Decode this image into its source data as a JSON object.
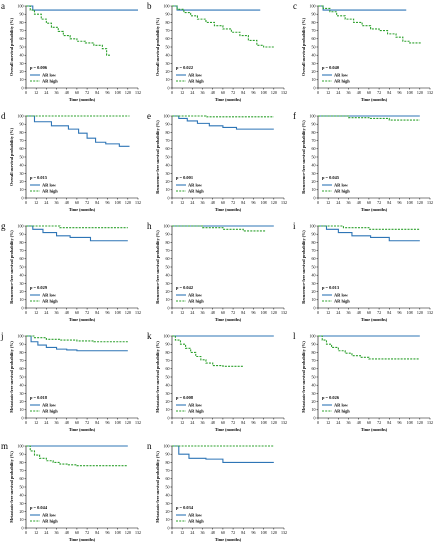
{
  "chart_data": [
    {
      "type": "line",
      "panel": "a",
      "ylabel": "Overall survival probability (%)",
      "xlabel": "Time (months)",
      "pvalue": "p = 0.006",
      "legend": [
        "AR low",
        "AR high"
      ],
      "colors": [
        "#2e75b6",
        "#2ca02c"
      ],
      "dashed": [
        false,
        true
      ],
      "xlim": [
        0,
        132
      ],
      "ylim": [
        0,
        100
      ],
      "series": [
        {
          "name": "AR low",
          "x": [
            0,
            8,
            132
          ],
          "y": [
            100,
            95,
            95
          ]
        },
        {
          "name": "AR high",
          "x": [
            0,
            5,
            10,
            18,
            24,
            30,
            38,
            44,
            52,
            60,
            70,
            80,
            90,
            95,
            100
          ],
          "y": [
            100,
            95,
            90,
            84,
            79,
            74,
            69,
            64,
            60,
            57,
            55,
            52,
            48,
            40,
            40
          ]
        }
      ]
    },
    {
      "type": "line",
      "panel": "b",
      "ylabel": "Overall survival probability (%)",
      "xlabel": "Time (months)",
      "pvalue": "p = 0.022",
      "legend": [
        "AR low",
        "AR high"
      ],
      "colors": [
        "#2e75b6",
        "#2ca02c"
      ],
      "dashed": [
        false,
        true
      ],
      "xlim": [
        0,
        132
      ],
      "ylim": [
        0,
        100
      ],
      "series": [
        {
          "name": "AR low",
          "x": [
            0,
            6,
            104
          ],
          "y": [
            100,
            95,
            95
          ]
        },
        {
          "name": "AR high",
          "x": [
            0,
            6,
            14,
            22,
            30,
            40,
            50,
            60,
            70,
            80,
            90,
            100,
            108,
            120
          ],
          "y": [
            100,
            96,
            92,
            88,
            84,
            80,
            76,
            72,
            68,
            64,
            58,
            52,
            50,
            50
          ]
        }
      ]
    },
    {
      "type": "line",
      "panel": "c",
      "ylabel": "Overall survival probability (%)",
      "xlabel": "Time (months)",
      "pvalue": "p = 0.040",
      "legend": [
        "AR low",
        "AR high"
      ],
      "colors": [
        "#2e75b6",
        "#2ca02c"
      ],
      "dashed": [
        false,
        true
      ],
      "xlim": [
        0,
        132
      ],
      "ylim": [
        0,
        100
      ],
      "series": [
        {
          "name": "AR low",
          "x": [
            0,
            6,
            104
          ],
          "y": [
            100,
            95,
            95
          ]
        },
        {
          "name": "AR high",
          "x": [
            0,
            6,
            14,
            22,
            32,
            42,
            52,
            62,
            72,
            82,
            92,
            100,
            108,
            122
          ],
          "y": [
            100,
            97,
            93,
            88,
            84,
            80,
            76,
            72,
            70,
            66,
            62,
            57,
            55,
            55
          ]
        }
      ]
    },
    {
      "type": "line",
      "panel": "d",
      "ylabel": "Overall survival probability (%)",
      "xlabel": "Time (months)",
      "pvalue": "p = 0.015",
      "legend": [
        "AR low",
        "AR high"
      ],
      "colors": [
        "#2e75b6",
        "#2ca02c"
      ],
      "dashed": [
        false,
        true
      ],
      "xlim": [
        0,
        132
      ],
      "ylim": [
        0,
        100
      ],
      "series": [
        {
          "name": "AR low",
          "x": [
            0,
            10,
            30,
            50,
            62,
            72,
            82,
            94,
            110,
            122
          ],
          "y": [
            100,
            93,
            88,
            84,
            79,
            73,
            68,
            66,
            63,
            63
          ]
        },
        {
          "name": "AR high",
          "x": [
            0,
            122
          ],
          "y": [
            100,
            100
          ]
        }
      ]
    },
    {
      "type": "line",
      "panel": "e",
      "ylabel": "Recurrence-free survival probability (%)",
      "xlabel": "Time (months)",
      "pvalue": "p = 0.001",
      "legend": [
        "AR low",
        "AR high"
      ],
      "colors": [
        "#2e75b6",
        "#2ca02c"
      ],
      "dashed": [
        false,
        true
      ],
      "xlim": [
        0,
        132
      ],
      "ylim": [
        0,
        100
      ],
      "series": [
        {
          "name": "AR low",
          "x": [
            0,
            8,
            18,
            30,
            44,
            60,
            76,
            120
          ],
          "y": [
            100,
            97,
            94,
            91,
            88,
            86,
            84,
            84
          ]
        },
        {
          "name": "AR high",
          "x": [
            0,
            40,
            120
          ],
          "y": [
            100,
            99,
            99
          ]
        }
      ]
    },
    {
      "type": "line",
      "panel": "f",
      "ylabel": "Recurrence-free survival probability (%)",
      "xlabel": "Time (months)",
      "pvalue": "p = 0.045",
      "legend": [
        "AR low",
        "AR high"
      ],
      "colors": [
        "#2e75b6",
        "#2ca02c"
      ],
      "dashed": [
        false,
        true
      ],
      "xlim": [
        0,
        132
      ],
      "ylim": [
        0,
        100
      ],
      "series": [
        {
          "name": "AR low",
          "x": [
            0,
            120
          ],
          "y": [
            100,
            100
          ]
        },
        {
          "name": "AR high",
          "x": [
            0,
            36,
            60,
            84,
            120
          ],
          "y": [
            100,
            98,
            97,
            95,
            95
          ]
        }
      ]
    },
    {
      "type": "line",
      "panel": "g",
      "ylabel": "Recurrence-free survival probability (%)",
      "xlabel": "Time (months)",
      "pvalue": "p = 0.029",
      "legend": [
        "AR low",
        "AR high"
      ],
      "colors": [
        "#2e75b6",
        "#2ca02c"
      ],
      "dashed": [
        false,
        true
      ],
      "xlim": [
        0,
        132
      ],
      "ylim": [
        0,
        100
      ],
      "series": [
        {
          "name": "AR low",
          "x": [
            0,
            8,
            20,
            36,
            52,
            76,
            120
          ],
          "y": [
            100,
            96,
            92,
            88,
            86,
            82,
            82
          ]
        },
        {
          "name": "AR high",
          "x": [
            0,
            40,
            120
          ],
          "y": [
            100,
            98,
            98
          ]
        }
      ]
    },
    {
      "type": "line",
      "panel": "h",
      "ylabel": "Recurrence-free survival probability (%)",
      "xlabel": "Time (months)",
      "pvalue": "p = 0.042",
      "legend": [
        "AR low",
        "AR high"
      ],
      "colors": [
        "#2e75b6",
        "#2ca02c"
      ],
      "dashed": [
        false,
        true
      ],
      "xlim": [
        0,
        132
      ],
      "ylim": [
        0,
        100
      ],
      "series": [
        {
          "name": "AR low",
          "x": [
            0,
            120
          ],
          "y": [
            100,
            100
          ]
        },
        {
          "name": "AR high",
          "x": [
            0,
            36,
            60,
            84,
            110
          ],
          "y": [
            100,
            98,
            96,
            94,
            94
          ]
        }
      ]
    },
    {
      "type": "line",
      "panel": "i",
      "ylabel": "Recurrence-free survival probability (%)",
      "xlabel": "Time (months)",
      "pvalue": "p = 0.013",
      "legend": [
        "AR low",
        "AR high"
      ],
      "colors": [
        "#2e75b6",
        "#2ca02c"
      ],
      "dashed": [
        false,
        true
      ],
      "xlim": [
        0,
        132
      ],
      "ylim": [
        0,
        100
      ],
      "series": [
        {
          "name": "AR low",
          "x": [
            0,
            10,
            24,
            40,
            62,
            84,
            120
          ],
          "y": [
            100,
            96,
            92,
            88,
            86,
            82,
            82
          ]
        },
        {
          "name": "AR high",
          "x": [
            0,
            30,
            60,
            120
          ],
          "y": [
            100,
            98,
            96,
            96
          ]
        }
      ]
    },
    {
      "type": "line",
      "panel": "j",
      "ylabel": "Metastasis-free survival probability (%)",
      "xlabel": "Time (months)",
      "pvalue": "p = 0.018",
      "legend": [
        "AR low",
        "AR high"
      ],
      "colors": [
        "#2e75b6",
        "#2ca02c"
      ],
      "dashed": [
        false,
        true
      ],
      "xlim": [
        0,
        132
      ],
      "ylim": [
        0,
        100
      ],
      "series": [
        {
          "name": "AR low",
          "x": [
            0,
            6,
            14,
            24,
            36,
            48,
            60,
            120
          ],
          "y": [
            100,
            93,
            89,
            86,
            84,
            83,
            82,
            82
          ]
        },
        {
          "name": "AR high",
          "x": [
            0,
            10,
            24,
            40,
            60,
            80,
            120
          ],
          "y": [
            100,
            98,
            96,
            95,
            94,
            93,
            93
          ]
        }
      ]
    },
    {
      "type": "line",
      "panel": "k",
      "ylabel": "Metastasis-free survival probability (%)",
      "xlabel": "Time (months)",
      "pvalue": "p = 0.008",
      "legend": [
        "AR low",
        "AR high"
      ],
      "colors": [
        "#2e75b6",
        "#2ca02c"
      ],
      "dashed": [
        false,
        true
      ],
      "xlim": [
        0,
        132
      ],
      "ylim": [
        0,
        100
      ],
      "series": [
        {
          "name": "AR low",
          "x": [
            0,
            120
          ],
          "y": [
            100,
            100
          ]
        },
        {
          "name": "AR high",
          "x": [
            0,
            4,
            10,
            16,
            22,
            28,
            34,
            40,
            48,
            60,
            84
          ],
          "y": [
            100,
            95,
            90,
            85,
            80,
            75,
            71,
            67,
            64,
            63,
            63
          ]
        }
      ]
    },
    {
      "type": "line",
      "panel": "l",
      "ylabel": "Metastasis-free survival probability (%)",
      "xlabel": "Time (months)",
      "pvalue": "p = 0.026",
      "legend": [
        "AR low",
        "AR high"
      ],
      "colors": [
        "#2e75b6",
        "#2ca02c"
      ],
      "dashed": [
        false,
        true
      ],
      "xlim": [
        0,
        132
      ],
      "ylim": [
        0,
        100
      ],
      "series": [
        {
          "name": "AR low",
          "x": [
            0,
            120
          ],
          "y": [
            100,
            100
          ]
        },
        {
          "name": "AR high",
          "x": [
            0,
            5,
            10,
            16,
            24,
            32,
            40,
            50,
            60,
            120
          ],
          "y": [
            100,
            95,
            90,
            86,
            82,
            79,
            76,
            74,
            72,
            72
          ]
        }
      ]
    },
    {
      "type": "line",
      "panel": "m",
      "ylabel": "Metastasis-free survival probability (%)",
      "xlabel": "Time (months)",
      "pvalue": "p = 0.044",
      "legend": [
        "AR low",
        "AR high"
      ],
      "colors": [
        "#2e75b6",
        "#2ca02c"
      ],
      "dashed": [
        false,
        true
      ],
      "xlim": [
        0,
        132
      ],
      "ylim": [
        0,
        100
      ],
      "series": [
        {
          "name": "AR low",
          "x": [
            0,
            120
          ],
          "y": [
            100,
            100
          ]
        },
        {
          "name": "AR high",
          "x": [
            0,
            5,
            10,
            16,
            24,
            32,
            40,
            50,
            60,
            120
          ],
          "y": [
            100,
            94,
            89,
            85,
            82,
            80,
            78,
            77,
            76,
            76
          ]
        }
      ]
    },
    {
      "type": "line",
      "panel": "n",
      "ylabel": "Metastasis-free survival probability (%)",
      "xlabel": "Time (months)",
      "pvalue": "p = 0.034",
      "legend": [
        "AR low",
        "AR high"
      ],
      "colors": [
        "#2e75b6",
        "#2ca02c"
      ],
      "dashed": [
        false,
        true
      ],
      "xlim": [
        0,
        132
      ],
      "ylim": [
        0,
        100
      ],
      "series": [
        {
          "name": "AR low",
          "x": [
            0,
            8,
            20,
            40,
            60,
            120
          ],
          "y": [
            100,
            90,
            85,
            84,
            80,
            80
          ]
        },
        {
          "name": "AR high",
          "x": [
            0,
            120
          ],
          "y": [
            100,
            100
          ]
        }
      ]
    }
  ],
  "xticks": [
    "0",
    "12",
    "24",
    "36",
    "48",
    "60",
    "72",
    "84",
    "96",
    "108",
    "120",
    "132"
  ],
  "yticks": [
    "0",
    "10",
    "20",
    "30",
    "40",
    "50",
    "60",
    "70",
    "80",
    "90",
    "100"
  ]
}
